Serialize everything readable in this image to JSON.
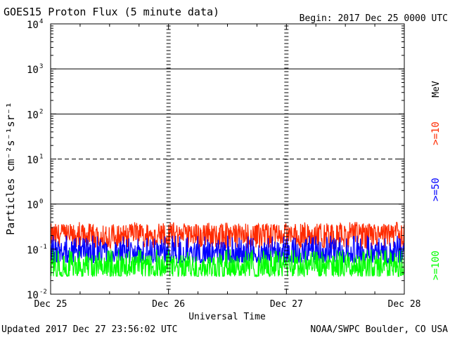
{
  "header": {
    "title": "GOES15 Proton Flux (5 minute data)",
    "begin": "Begin: 2017 Dec 25 0000 UTC"
  },
  "footer": {
    "updated": "Updated 2017 Dec 27 23:56:02 UTC",
    "credit": "NOAA/SWPC Boulder, CO USA"
  },
  "chart_data": {
    "type": "line",
    "title": "GOES15 Proton Flux (5 minute data)",
    "xlabel": "Universal Time",
    "ylabel": "Particles cm⁻²s⁻¹sr⁻¹",
    "yscale": "log",
    "ylim": [
      0.01,
      10000
    ],
    "y_ticks": [
      {
        "value": 0.01,
        "base": "10",
        "exp": "-2"
      },
      {
        "value": 0.1,
        "base": "10",
        "exp": "-1"
      },
      {
        "value": 1,
        "base": "10",
        "exp": "0"
      },
      {
        "value": 10,
        "base": "10",
        "exp": "1"
      },
      {
        "value": 100,
        "base": "10",
        "exp": "2"
      },
      {
        "value": 1000,
        "base": "10",
        "exp": "3"
      },
      {
        "value": 10000,
        "base": "10",
        "exp": "4"
      }
    ],
    "reference_lines": [
      {
        "value": 1,
        "style": "solid"
      },
      {
        "value": 10,
        "style": "dashed"
      },
      {
        "value": 100,
        "style": "solid"
      },
      {
        "value": 1000,
        "style": "solid"
      }
    ],
    "x_tick_labels": [
      "Dec 25",
      "Dec 26",
      "Dec 27",
      "Dec 28"
    ],
    "xlim": [
      "2017-12-25 00:00",
      "2017-12-28 00:00"
    ],
    "energy_unit": "MeV",
    "series": [
      {
        "name": ">=10",
        "color": "#ff2a00",
        "typical_value": 0.2,
        "min": 0.1,
        "max": 0.4
      },
      {
        "name": ">=50",
        "color": "#0000ff",
        "typical_value": 0.08,
        "min": 0.05,
        "max": 0.2
      },
      {
        "name": ">=100",
        "color": "#00ff00",
        "typical_value": 0.04,
        "min": 0.025,
        "max": 0.1
      }
    ],
    "grid": false
  }
}
